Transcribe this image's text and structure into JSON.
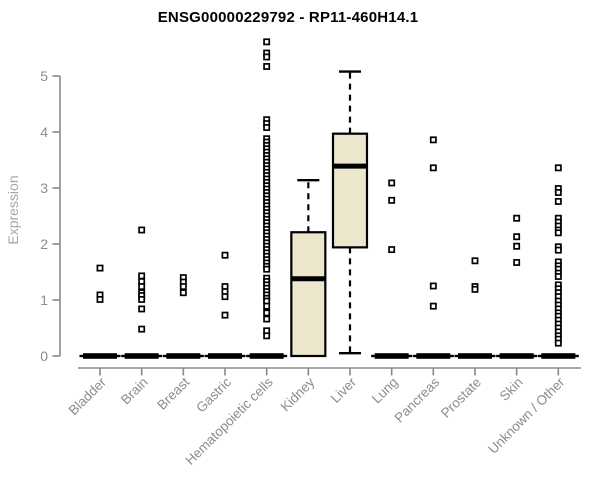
{
  "chart_data": {
    "type": "boxplot",
    "title": "ENSG00000229792 - RP11-460H14.1",
    "ylabel": "Expression",
    "xlabel": "",
    "ylim": [
      0,
      5
    ],
    "yticks": [
      0,
      1,
      2,
      3,
      4,
      5
    ],
    "grid": false,
    "legend": false,
    "colors": {
      "box_fill": "#ECE7CC",
      "box_stroke": "#000000",
      "median": "#000000",
      "outlier_fill": "#ffffff",
      "axis": "#8a8a8a",
      "tick_label": "#8c8c8c",
      "axis_label": "#a6a6a6",
      "title": "#000000"
    },
    "categories": [
      "Bladder",
      "Brain",
      "Breast",
      "Gastric",
      "Hematopoietic cells",
      "Kidney",
      "Liver",
      "Lung",
      "Pancreas",
      "Prostate",
      "Skin",
      "Unknown / Other"
    ],
    "series": [
      {
        "category": "Bladder",
        "box": {
          "min": 0,
          "q1": 0,
          "median": 0,
          "q3": 0,
          "max": 0
        },
        "outliers": [
          1.57,
          1.09,
          1.01
        ]
      },
      {
        "category": "Brain",
        "box": {
          "min": 0,
          "q1": 0,
          "median": 0,
          "q3": 0,
          "max": 0
        },
        "outliers": [
          2.25,
          1.43,
          1.33,
          1.24,
          1.13,
          1.08,
          1.01,
          0.84,
          0.48
        ]
      },
      {
        "category": "Breast",
        "box": {
          "min": 0,
          "q1": 0,
          "median": 0,
          "q3": 0,
          "max": 0
        },
        "outliers": [
          1.4,
          1.32,
          1.24,
          1.13
        ]
      },
      {
        "category": "Gastric",
        "box": {
          "min": 0,
          "q1": 0,
          "median": 0,
          "q3": 0,
          "max": 0
        },
        "outliers": [
          1.8,
          1.24,
          1.15,
          1.06,
          0.73
        ]
      },
      {
        "category": "Hematopoietic cells",
        "box": {
          "min": 0,
          "q1": 0,
          "median": 0,
          "q3": 0,
          "max": 0
        },
        "outliers": [
          5.61,
          5.41,
          5.34,
          5.17,
          4.22,
          4.15,
          4.08,
          3.88,
          3.82,
          3.76,
          3.7,
          3.64,
          3.58,
          3.52,
          3.46,
          3.4,
          3.34,
          3.28,
          3.22,
          3.16,
          3.1,
          3.04,
          2.98,
          2.92,
          2.86,
          2.8,
          2.74,
          2.68,
          2.62,
          2.56,
          2.5,
          2.44,
          2.38,
          2.32,
          2.26,
          2.2,
          2.14,
          2.08,
          2.02,
          1.96,
          1.9,
          1.84,
          1.78,
          1.72,
          1.66,
          1.6,
          1.55,
          1.39,
          1.33,
          1.27,
          1.21,
          1.15,
          1.09,
          1.03,
          0.98,
          0.89,
          0.77,
          0.66,
          0.45,
          0.36
        ]
      },
      {
        "category": "Kidney",
        "box": {
          "min": 0,
          "q1": 0,
          "median": 1.38,
          "q3": 2.21,
          "max": 3.14
        },
        "outliers": []
      },
      {
        "category": "Liver",
        "box": {
          "min": 0.05,
          "q1": 1.94,
          "median": 3.39,
          "q3": 3.97,
          "max": 5.08
        },
        "outliers": []
      },
      {
        "category": "Lung",
        "box": {
          "min": 0,
          "q1": 0,
          "median": 0,
          "q3": 0,
          "max": 0
        },
        "outliers": [
          3.09,
          2.78,
          1.9
        ]
      },
      {
        "category": "Pancreas",
        "box": {
          "min": 0,
          "q1": 0,
          "median": 0,
          "q3": 0,
          "max": 0
        },
        "outliers": [
          3.86,
          3.36,
          1.25,
          0.89
        ]
      },
      {
        "category": "Prostate",
        "box": {
          "min": 0,
          "q1": 0,
          "median": 0,
          "q3": 0,
          "max": 0
        },
        "outliers": [
          1.7,
          1.24,
          1.19
        ]
      },
      {
        "category": "Skin",
        "box": {
          "min": 0,
          "q1": 0,
          "median": 0,
          "q3": 0,
          "max": 0
        },
        "outliers": [
          2.46,
          2.13,
          1.96,
          1.67
        ]
      },
      {
        "category": "Unknown / Other",
        "box": {
          "min": 0,
          "q1": 0,
          "median": 0,
          "q3": 0,
          "max": 0
        },
        "outliers": [
          3.36,
          2.99,
          2.92,
          2.76,
          2.46,
          2.39,
          2.32,
          2.25,
          2.2,
          1.95,
          1.89,
          1.68,
          1.61,
          1.55,
          1.48,
          1.42,
          1.27,
          1.2,
          1.13,
          1.06,
          0.98,
          0.91,
          0.84,
          0.77,
          0.71,
          0.64,
          0.57,
          0.5,
          0.43,
          0.36,
          0.3,
          0.23
        ]
      }
    ]
  }
}
